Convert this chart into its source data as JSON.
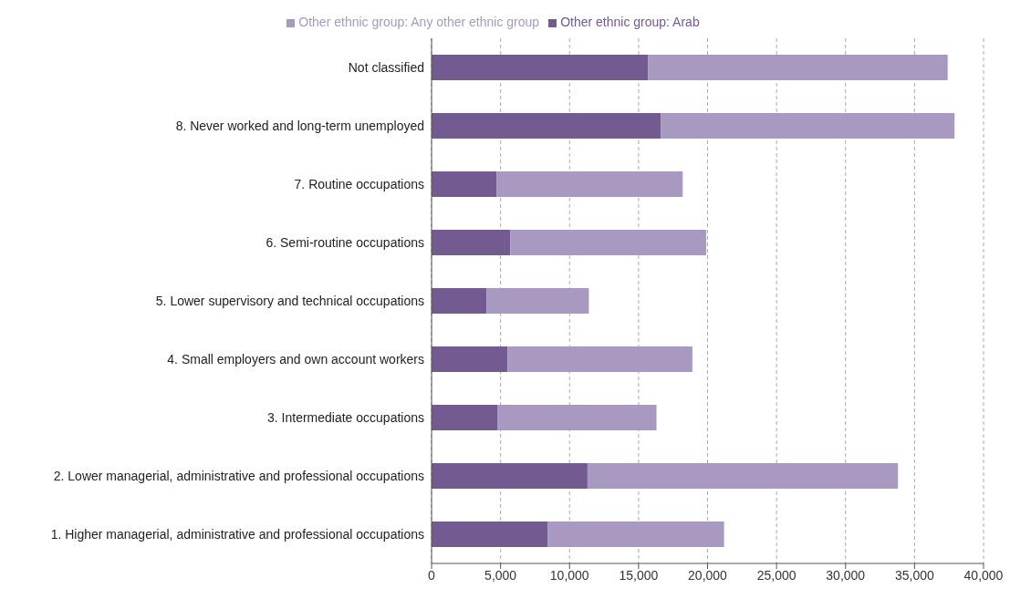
{
  "chart_data": {
    "type": "bar",
    "orientation": "horizontal",
    "stacked": true,
    "categories": [
      "Not classified",
      "8. Never worked and long-term unemployed",
      "7. Routine occupations",
      "6. Semi-routine occupations",
      "5. Lower supervisory and technical occupations",
      "4. Small employers and own account workers",
      "3. Intermediate occupations",
      "2. Lower managerial, administrative and professional occupations",
      "1. Higher managerial, administrative and professional occupations"
    ],
    "series": [
      {
        "name": "Other ethnic group: Arab",
        "color": "#735a91",
        "values": [
          15700,
          16600,
          4700,
          5700,
          4000,
          5500,
          4800,
          11300,
          8400
        ]
      },
      {
        "name": "Other ethnic group: Any other ethnic group",
        "color": "#a899c0",
        "values": [
          21700,
          21300,
          13500,
          14200,
          7400,
          13400,
          11500,
          22500,
          12800
        ]
      }
    ],
    "xlim": [
      0,
      40000
    ],
    "xticks": [
      {
        "value": 0,
        "label": "0"
      },
      {
        "value": 5000,
        "label": "5,000"
      },
      {
        "value": 10000,
        "label": "10,000"
      },
      {
        "value": 15000,
        "label": "15,000"
      },
      {
        "value": 20000,
        "label": "20,000"
      },
      {
        "value": 25000,
        "label": "25,000"
      },
      {
        "value": 30000,
        "label": "30,000"
      },
      {
        "value": 35000,
        "label": "35,000"
      },
      {
        "value": 40000,
        "label": "40,000"
      }
    ],
    "grid": "x",
    "legend": "top"
  }
}
